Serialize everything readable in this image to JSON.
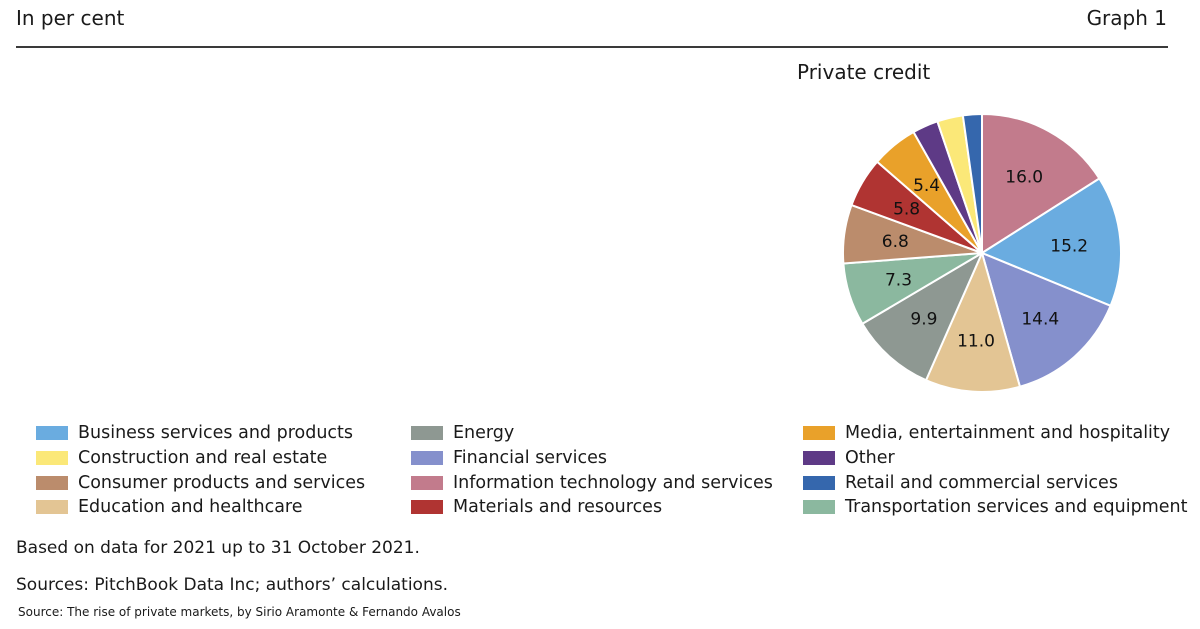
{
  "header": {
    "units": "In per cent",
    "graph_label": "Graph 1"
  },
  "chart_data": {
    "type": "pie",
    "title": "Private credit",
    "slices": [
      {
        "label": "Information technology and services",
        "value": 16.0,
        "display": "16.0",
        "color": "#c27b8c"
      },
      {
        "label": "Business services and products",
        "value": 15.2,
        "display": "15.2",
        "color": "#6aace0"
      },
      {
        "label": "Financial services",
        "value": 14.4,
        "display": "14.4",
        "color": "#8590cc"
      },
      {
        "label": "Education and healthcare",
        "value": 11.0,
        "display": "11.0",
        "color": "#e3c594"
      },
      {
        "label": "Energy",
        "value": 9.9,
        "display": "9.9",
        "color": "#8e9892"
      },
      {
        "label": "Transportation services and equipment",
        "value": 7.3,
        "display": "7.3",
        "color": "#8bb89f"
      },
      {
        "label": "Consumer products and services",
        "value": 6.8,
        "display": "6.8",
        "color": "#bb8c6c"
      },
      {
        "label": "Materials and resources",
        "value": 5.8,
        "display": "5.8",
        "color": "#b03432"
      },
      {
        "label": "Media, entertainment and hospitality",
        "value": 5.4,
        "display": "5.4",
        "color": "#e9a12a"
      },
      {
        "label": "Other",
        "value": 3.0,
        "display": "",
        "color": "#5e3a86"
      },
      {
        "label": "Construction and real estate",
        "value": 3.0,
        "display": "",
        "color": "#fbe878"
      },
      {
        "label": "Retail and commercial services",
        "value": 2.2,
        "display": "",
        "color": "#3567ad"
      }
    ]
  },
  "legend": [
    [
      {
        "label": "Business services and products",
        "color": "#6aace0"
      },
      {
        "label": "Construction and real estate",
        "color": "#fbe878"
      },
      {
        "label": "Consumer products and services",
        "color": "#bb8c6c"
      },
      {
        "label": "Education and healthcare",
        "color": "#e3c594"
      }
    ],
    [
      {
        "label": "Energy",
        "color": "#8e9892"
      },
      {
        "label": "Financial services",
        "color": "#8590cc"
      },
      {
        "label": "Information technology and services",
        "color": "#c27b8c"
      },
      {
        "label": "Materials and resources",
        "color": "#b03432"
      }
    ],
    [
      {
        "label": "Media, entertainment and hospitality",
        "color": "#e9a12a"
      },
      {
        "label": "Other",
        "color": "#5e3a86"
      },
      {
        "label": "Retail and commercial services",
        "color": "#3567ad"
      },
      {
        "label": "Transportation services and equipment",
        "color": "#8bb89f"
      }
    ]
  ],
  "notes": {
    "based_on": "Based on data for 2021 up to 31 October 2021.",
    "sources": "Sources: PitchBook Data Inc; authors’ calculations.",
    "credit": "Source: The rise of private markets, by Sirio Aramonte & Fernando Avalos"
  }
}
